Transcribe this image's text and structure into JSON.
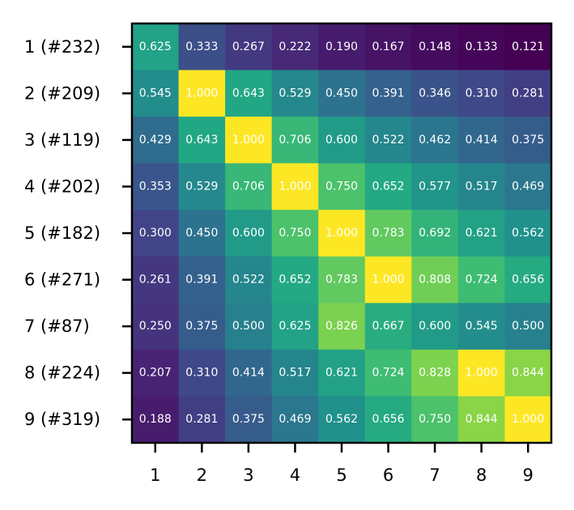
{
  "chart_data": {
    "type": "heatmap",
    "title": "",
    "xlabel": "",
    "ylabel": "",
    "x_categories": [
      "1",
      "2",
      "3",
      "4",
      "5",
      "6",
      "7",
      "8",
      "9"
    ],
    "y_categories": [
      "1 (#232)",
      "2 (#209)",
      "3 (#119)",
      "4 (#202)",
      "5 (#182)",
      "6 (#271)",
      "7 (#87)",
      "8 (#224)",
      "9 (#319)"
    ],
    "colormap": "viridis",
    "value_range": [
      0.121,
      1.0
    ],
    "grid": false,
    "legend": "none",
    "cell_label_color": "#ffffff",
    "values": [
      [
        0.625,
        0.333,
        0.267,
        0.222,
        0.19,
        0.167,
        0.148,
        0.133,
        0.121
      ],
      [
        0.545,
        1.0,
        0.643,
        0.529,
        0.45,
        0.391,
        0.346,
        0.31,
        0.281
      ],
      [
        0.429,
        0.643,
        1.0,
        0.706,
        0.6,
        0.522,
        0.462,
        0.414,
        0.375
      ],
      [
        0.353,
        0.529,
        0.706,
        1.0,
        0.75,
        0.652,
        0.577,
        0.517,
        0.469
      ],
      [
        0.3,
        0.45,
        0.6,
        0.75,
        1.0,
        0.783,
        0.692,
        0.621,
        0.562
      ],
      [
        0.261,
        0.391,
        0.522,
        0.652,
        0.783,
        1.0,
        0.808,
        0.724,
        0.656
      ],
      [
        0.25,
        0.375,
        0.5,
        0.625,
        0.826,
        0.667,
        0.6,
        0.545,
        0.5
      ],
      [
        0.207,
        0.31,
        0.414,
        0.517,
        0.621,
        0.724,
        0.828,
        1.0,
        0.844
      ],
      [
        0.188,
        0.281,
        0.375,
        0.469,
        0.562,
        0.656,
        0.75,
        0.844,
        1.0
      ]
    ]
  }
}
